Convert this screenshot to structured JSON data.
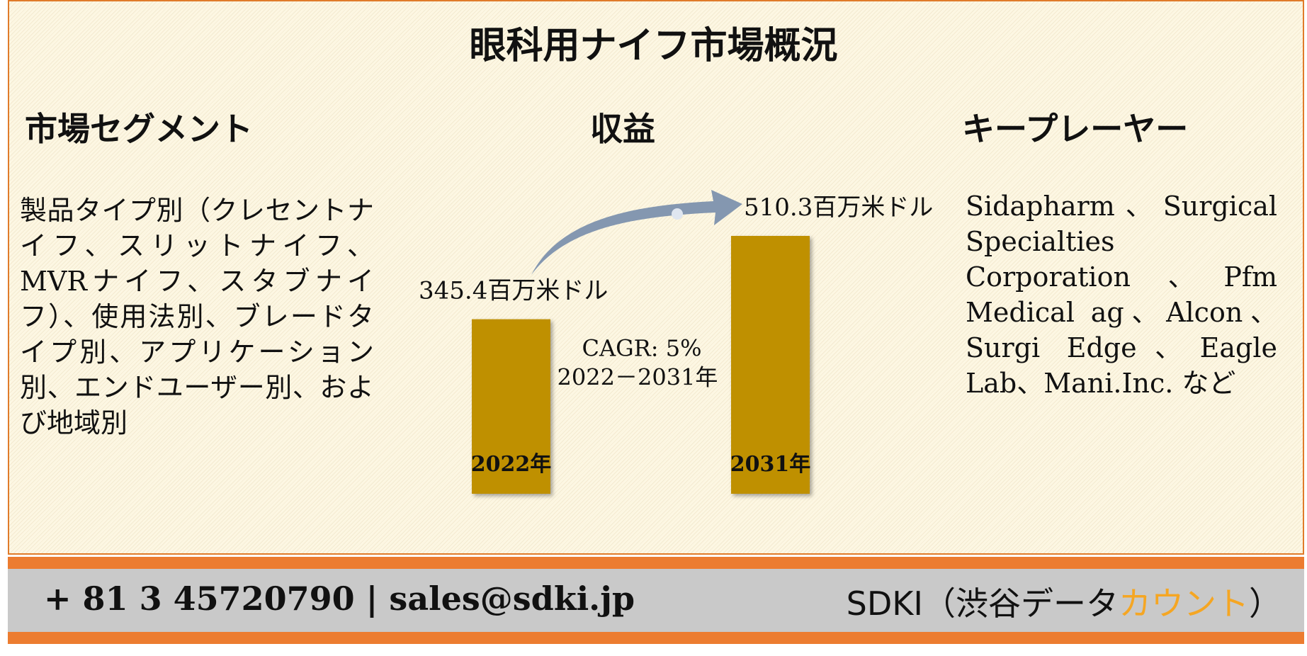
{
  "header": {
    "title": "眼科用ナイフ市場概況"
  },
  "segments": {
    "heading": "市場セグメント",
    "text": "製品タイプ別（クレセントナイフ、スリットナイフ、MVRナイフ、スタブナイフ）、使用法別、ブレードタイプ別、アプリケーション別、エンドユーザー別、および地域別"
  },
  "chart_data": {
    "type": "bar",
    "title": "収益",
    "categories": [
      "2022年",
      "2031年"
    ],
    "values": [
      345.4,
      510.3
    ],
    "value_labels": [
      "345.4百万米ドル",
      "510.3百万米ドル"
    ],
    "color": "#bf9000",
    "annotations": [
      "CAGR: 5%",
      "2022－2031年"
    ]
  },
  "players": {
    "heading": "キープレーヤー",
    "text": "Sidapharm、Surgical Specialties Corporation 、Pfm Medical ag、Alcon、Surgi Edge、Eagle Lab、Mani.Inc. など"
  },
  "footer": {
    "contact": "+ 81 3 45720790 | sales@sdki.jp",
    "company_prefix": "SDKI（渋谷データ",
    "company_highlight": "カウント",
    "company_suffix": "）"
  }
}
